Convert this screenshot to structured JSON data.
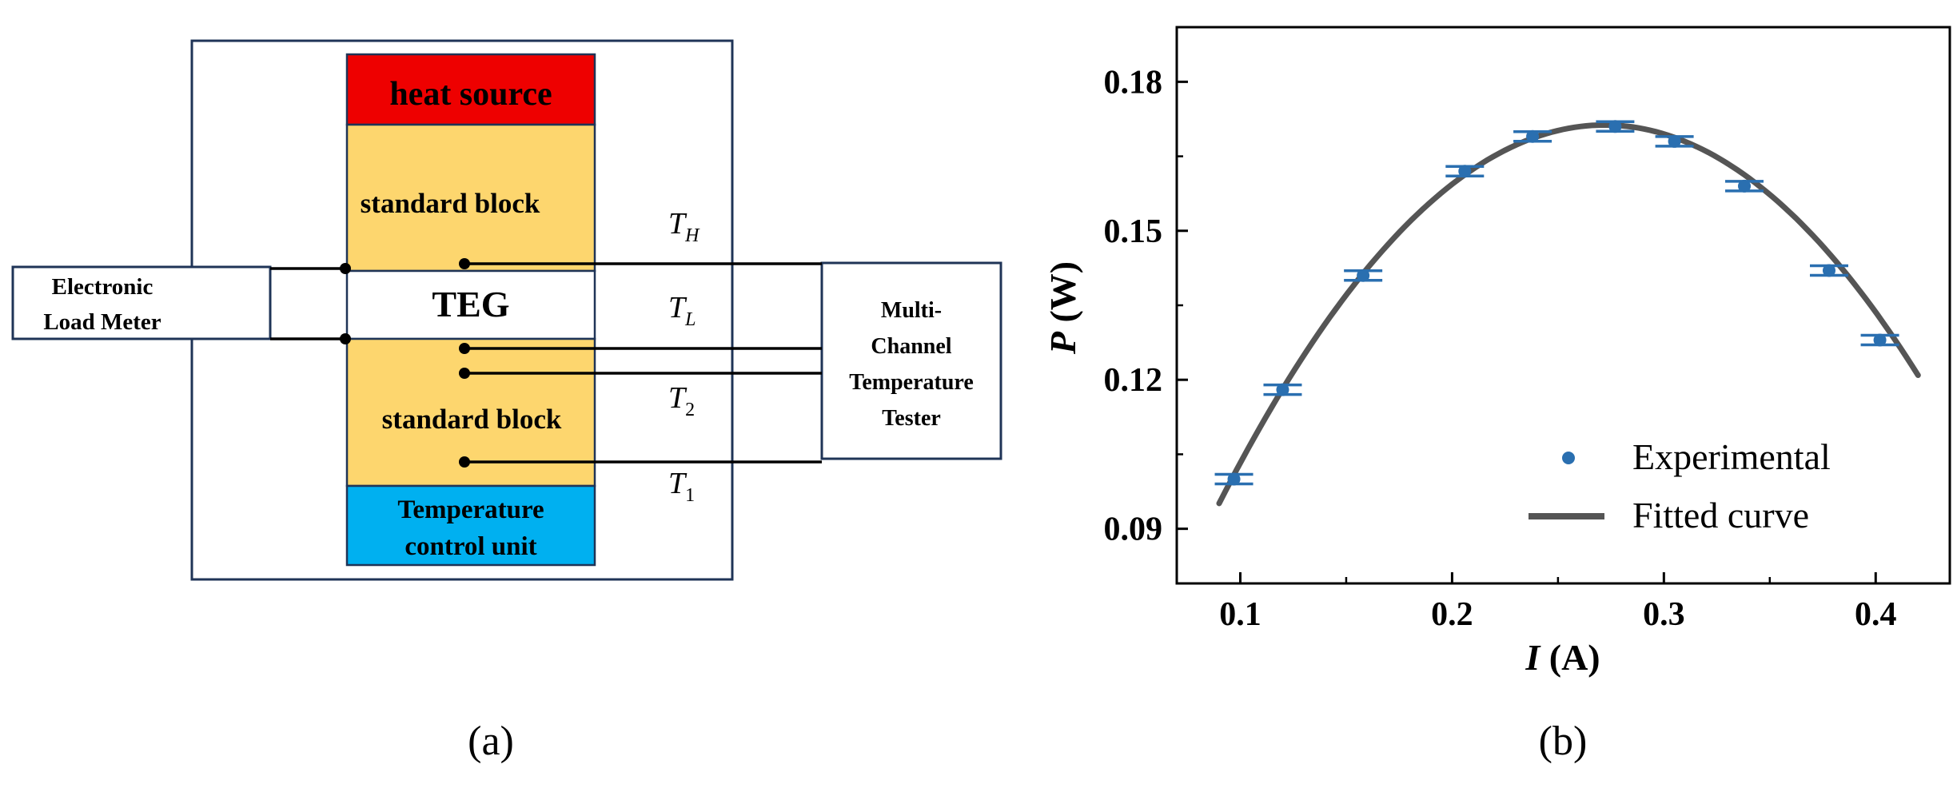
{
  "diagram": {
    "heat_source": "heat source",
    "standard_block_top": "standard block",
    "teg": "TEG",
    "standard_block_bottom": "standard block",
    "temp_control_line1": "Temperature",
    "temp_control_line2": "control unit",
    "load_meter_line1": "Electronic",
    "load_meter_line2": "Load Meter",
    "tester_line1": "Multi-",
    "tester_line2": "Channel",
    "tester_line3": "Temperature",
    "tester_line4": "Tester",
    "labels": [
      {
        "base": "T",
        "sub": "H"
      },
      {
        "base": "T",
        "sub": "L"
      },
      {
        "base": "T",
        "sub": "2"
      },
      {
        "base": "T",
        "sub": "1"
      }
    ],
    "colors": {
      "frame": "#1f3457",
      "heat_source": "#ee0000",
      "standard_block": "#fdd66e",
      "temp_control": "#00b0f0"
    }
  },
  "panel_labels": {
    "a": "(a)",
    "b": "(b)"
  },
  "chart_data": {
    "type": "scatter",
    "xlabel_italic": "I",
    "xlabel_unit": " (A)",
    "ylabel_italic": "P",
    "ylabel_unit": " (W)",
    "xlim": [
      0.07,
      0.435
    ],
    "ylim": [
      0.079,
      0.191
    ],
    "x_ticks": [
      0.1,
      0.2,
      0.3,
      0.4
    ],
    "x_tick_labels": [
      "0.1",
      "0.2",
      "0.3",
      "0.4"
    ],
    "y_ticks": [
      0.09,
      0.12,
      0.15,
      0.18
    ],
    "y_tick_labels": [
      "0.09",
      "0.12",
      "0.15",
      "0.18"
    ],
    "series": [
      {
        "name": "Experimental",
        "x": [
          0.097,
          0.12,
          0.158,
          0.206,
          0.238,
          0.277,
          0.305,
          0.338,
          0.378,
          0.402
        ],
        "y": [
          0.1,
          0.118,
          0.141,
          0.162,
          0.169,
          0.171,
          0.168,
          0.159,
          0.142,
          0.128
        ],
        "error": [
          0.0006,
          0.0006,
          0.0006,
          0.0006,
          0.0006,
          0.0006,
          0.0006,
          0.0006,
          0.0006,
          0.0006
        ],
        "color": "#2a6fb0"
      },
      {
        "name": "Fitted curve",
        "model": "quadratic",
        "x_range": [
          0.09,
          0.42
        ],
        "vertex_x": 0.272,
        "vertex_y": 0.1713,
        "curvature": -2.3,
        "color": "#555555"
      }
    ],
    "legend_position": "bottom-right",
    "grid": false
  }
}
